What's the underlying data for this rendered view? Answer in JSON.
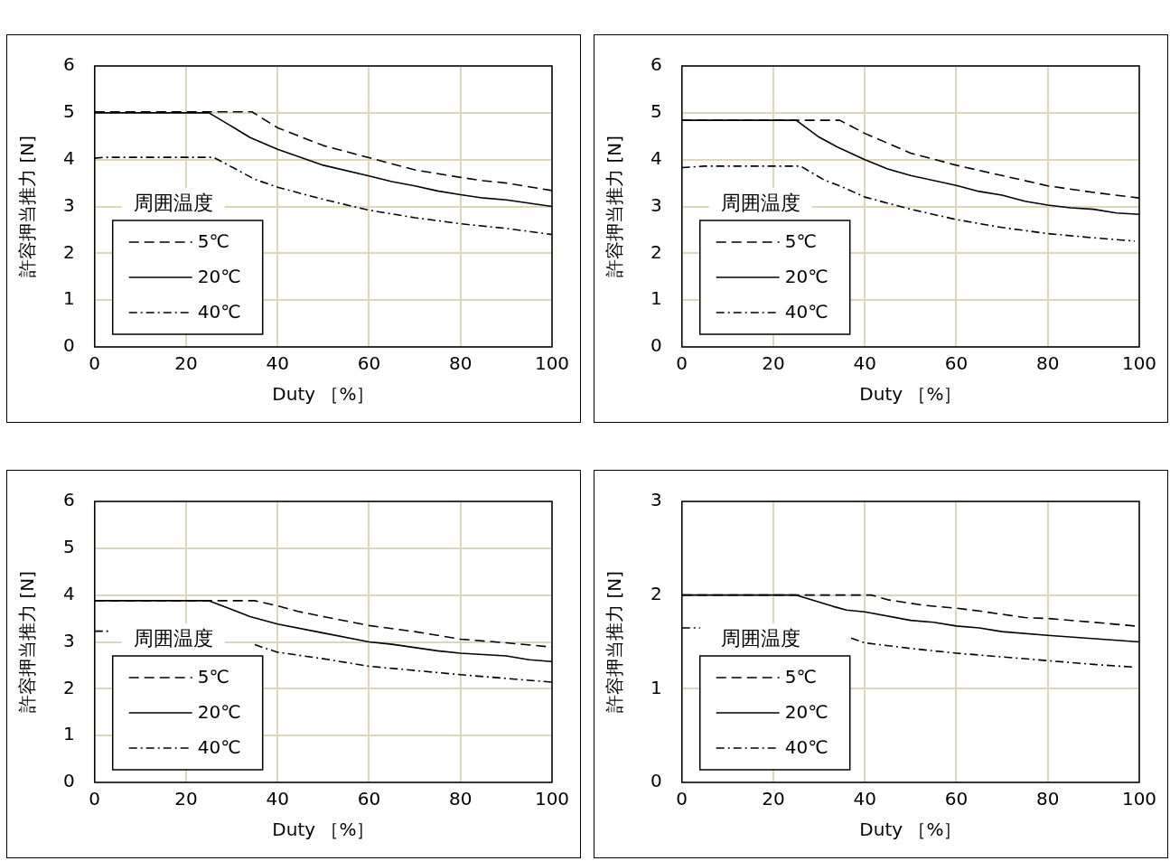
{
  "chart_data": [
    {
      "type": "line",
      "xlabel": "Duty ［%］",
      "ylabel": "許容押当推力 [N]",
      "xlim": [
        0,
        100
      ],
      "xticks": [
        0,
        20,
        40,
        60,
        80,
        100
      ],
      "ylim": [
        0,
        6
      ],
      "yticks": [
        0,
        1,
        2,
        3,
        4,
        5,
        6
      ],
      "grid": true,
      "legend": "bottom left",
      "legend_title": "周囲温度",
      "marker": "none",
      "series": [
        {
          "name": "5℃",
          "color": "#000000",
          "line_style": "dashed",
          "x": [
            0,
            34.4,
            40,
            50,
            60,
            70,
            80,
            85,
            90,
            100
          ],
          "values": [
            5.02,
            5.02,
            4.68,
            4.3,
            4.04,
            3.78,
            3.62,
            3.55,
            3.5,
            3.34
          ]
        },
        {
          "name": "20℃",
          "color": "#000000",
          "line_style": "solid",
          "x": [
            0,
            25,
            31,
            34,
            40,
            50,
            60,
            65,
            70,
            75,
            80,
            85,
            90,
            100
          ],
          "values": [
            5.0,
            5.0,
            4.65,
            4.47,
            4.22,
            3.88,
            3.65,
            3.53,
            3.44,
            3.33,
            3.25,
            3.18,
            3.14,
            3.0
          ]
        },
        {
          "name": "40℃",
          "color": "#000000",
          "line_style": "dashdot",
          "x": [
            0,
            2,
            26,
            31,
            35,
            40,
            50,
            60,
            70,
            80,
            90,
            100
          ],
          "values": [
            4.03,
            4.05,
            4.05,
            3.79,
            3.58,
            3.41,
            3.15,
            2.92,
            2.76,
            2.63,
            2.53,
            2.4
          ]
        }
      ]
    },
    {
      "type": "line",
      "xlabel": "Duty ［%］",
      "ylabel": "許容押当推力 [N]",
      "xlim": [
        0,
        100
      ],
      "xticks": [
        0,
        20,
        40,
        60,
        80,
        100
      ],
      "ylim": [
        0,
        6
      ],
      "yticks": [
        0,
        1,
        2,
        3,
        4,
        5,
        6
      ],
      "grid": true,
      "legend": "bottom left",
      "legend_title": "周囲温度",
      "marker": "none",
      "series": [
        {
          "name": "5℃",
          "color": "#000000",
          "line_style": "dashed",
          "x": [
            0,
            34.5,
            40,
            50,
            60,
            70,
            80,
            90,
            100
          ],
          "values": [
            4.84,
            4.84,
            4.56,
            4.14,
            3.88,
            3.66,
            3.44,
            3.3,
            3.18
          ]
        },
        {
          "name": "20℃",
          "color": "#000000",
          "line_style": "solid",
          "x": [
            0,
            25,
            30,
            34,
            40,
            45,
            50,
            60,
            65,
            70,
            75,
            80,
            85,
            90,
            95,
            100
          ],
          "values": [
            4.84,
            4.84,
            4.48,
            4.27,
            4.0,
            3.8,
            3.66,
            3.45,
            3.32,
            3.24,
            3.11,
            3.03,
            2.97,
            2.94,
            2.86,
            2.83
          ]
        },
        {
          "name": "40℃",
          "color": "#000000",
          "line_style": "dashdot",
          "x": [
            0,
            5,
            26,
            31,
            35,
            40,
            50,
            60,
            70,
            80,
            90,
            99
          ],
          "values": [
            3.83,
            3.86,
            3.86,
            3.57,
            3.42,
            3.2,
            2.94,
            2.72,
            2.55,
            2.42,
            2.33,
            2.26
          ]
        }
      ]
    },
    {
      "type": "line",
      "xlabel": "Duty ［%］",
      "ylabel": "許容押当推力 [N]",
      "xlim": [
        0,
        100
      ],
      "xticks": [
        0,
        20,
        40,
        60,
        80,
        100
      ],
      "ylim": [
        0,
        6
      ],
      "yticks": [
        0,
        1,
        2,
        3,
        4,
        5,
        6
      ],
      "grid": true,
      "legend": "bottom left",
      "legend_title": "周囲温度",
      "marker": "none",
      "series": [
        {
          "name": "5℃",
          "color": "#000000",
          "line_style": "dashed",
          "x": [
            0,
            35,
            40,
            44.5,
            50,
            60,
            70,
            80,
            90,
            100
          ],
          "values": [
            3.88,
            3.88,
            3.77,
            3.65,
            3.54,
            3.35,
            3.22,
            3.06,
            2.98,
            2.89
          ]
        },
        {
          "name": "20℃",
          "color": "#000000",
          "line_style": "solid",
          "x": [
            0,
            25,
            34,
            40,
            50,
            60,
            65,
            75,
            80,
            90,
            95,
            100
          ],
          "values": [
            3.88,
            3.88,
            3.54,
            3.38,
            3.19,
            3.0,
            2.95,
            2.81,
            2.76,
            2.7,
            2.62,
            2.58
          ]
        },
        {
          "name": "40℃",
          "color": "#000000",
          "line_style": "dashdot",
          "x": [
            0,
            3,
            4,
            35,
            40,
            50,
            60,
            70,
            80,
            90,
            100
          ],
          "values": [
            3.23,
            3.23,
            null,
            2.94,
            2.78,
            2.64,
            2.48,
            2.39,
            2.3,
            2.22,
            2.14
          ]
        }
      ]
    },
    {
      "type": "line",
      "xlabel": "Duty ［%］",
      "ylabel": "許容押当推力 [N]",
      "xlim": [
        0,
        100
      ],
      "xticks": [
        0,
        20,
        40,
        60,
        80,
        100
      ],
      "ylim": [
        0,
        3
      ],
      "yticks": [
        0,
        1,
        2,
        3
      ],
      "grid": true,
      "legend": "bottom left",
      "legend_title": "周囲温度",
      "marker": "none",
      "series": [
        {
          "name": "5℃",
          "color": "#000000",
          "line_style": "dashed",
          "x": [
            0,
            41.5,
            45,
            53,
            60,
            65,
            75,
            80,
            90,
            99
          ],
          "values": [
            2.0,
            2.0,
            1.95,
            1.89,
            1.86,
            1.83,
            1.76,
            1.75,
            1.71,
            1.67
          ]
        },
        {
          "name": "20℃",
          "color": "#000000",
          "line_style": "solid",
          "x": [
            0,
            25,
            33,
            36,
            40,
            50,
            55,
            60,
            65,
            70,
            80,
            100
          ],
          "values": [
            2.0,
            2.0,
            1.88,
            1.84,
            1.82,
            1.73,
            1.71,
            1.67,
            1.65,
            1.61,
            1.57,
            1.5
          ]
        },
        {
          "name": "40℃",
          "color": "#000000",
          "line_style": "dashdot",
          "x": [
            0,
            4,
            6,
            37,
            40,
            50,
            60,
            70,
            80,
            90,
            99
          ],
          "values": [
            1.65,
            1.65,
            null,
            1.54,
            1.49,
            1.43,
            1.38,
            1.34,
            1.3,
            1.26,
            1.23
          ]
        }
      ]
    }
  ]
}
